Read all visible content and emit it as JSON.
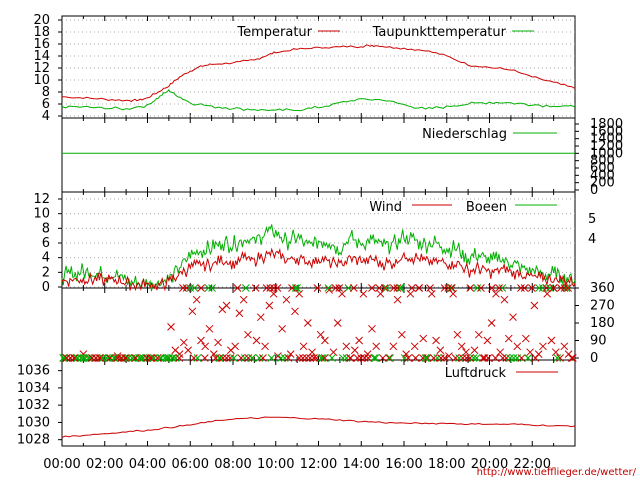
{
  "credit": "http://www.tiefflieger.de/wetter/",
  "colors": {
    "red": "#cc0000",
    "green": "#00b000",
    "grid": "#aaaaaa",
    "frame": "#000000"
  },
  "chart_data": [
    {
      "type": "line",
      "panel": "temperature",
      "x_unit": "hour",
      "xlim": [
        0,
        24
      ],
      "x_tick_labels": [
        "00:00",
        "02:00",
        "04:00",
        "06:00",
        "08:00",
        "10:00",
        "12:00",
        "14:00",
        "16:00",
        "18:00",
        "20:00",
        "22:00"
      ],
      "ylim": [
        4,
        20
      ],
      "y_ticks": [
        4,
        6,
        8,
        10,
        12,
        14,
        16,
        18,
        20
      ],
      "grid": "horizontal dotted",
      "legend_placement": "top",
      "series": [
        {
          "name": "Temperatur",
          "color": "#cc0000",
          "x": [
            0,
            1,
            2,
            3,
            3.5,
            4,
            4.5,
            5,
            5.5,
            6,
            6.5,
            7,
            8,
            9,
            9.5,
            10,
            11,
            12,
            13,
            14,
            14.5,
            15,
            16,
            17,
            18,
            19,
            20,
            21,
            22,
            23,
            24
          ],
          "y": [
            7.2,
            7.0,
            6.8,
            6.6,
            6.6,
            7.0,
            8.0,
            9.0,
            10.5,
            11.5,
            12.3,
            12.6,
            12.9,
            13.3,
            14.0,
            14.6,
            15.1,
            15.4,
            15.5,
            15.6,
            15.8,
            15.6,
            15.3,
            14.9,
            14.0,
            12.5,
            12.1,
            11.7,
            10.5,
            9.6,
            8.6
          ]
        },
        {
          "name": "Taupunkttemperatur",
          "color": "#00b000",
          "x": [
            0,
            1,
            2,
            3,
            4,
            4.5,
            5,
            5.3,
            6,
            7,
            8,
            9,
            10,
            11,
            12,
            13,
            14,
            15,
            16,
            17,
            18,
            19,
            20,
            21,
            22,
            23,
            24
          ],
          "y": [
            5.6,
            5.5,
            5.3,
            5.2,
            5.8,
            7.0,
            8.3,
            7.6,
            6.2,
            5.6,
            5.3,
            5.1,
            4.9,
            5.0,
            5.4,
            6.2,
            6.8,
            6.7,
            5.9,
            5.1,
            5.6,
            6.0,
            6.3,
            6.2,
            5.9,
            5.7,
            5.5
          ]
        }
      ]
    },
    {
      "type": "line",
      "panel": "precipitation",
      "x_unit": "hour",
      "xlim": [
        0,
        24
      ],
      "right_y_ticks": [
        0,
        200,
        400,
        600,
        800,
        1000,
        1200,
        1400,
        1600,
        1800
      ],
      "right_y_tick_labels": [
        "0",
        "200",
        "400",
        "600",
        "800",
        "1000",
        "1200",
        "1400",
        "1600",
        "1800"
      ],
      "legend_placement": "top-right",
      "series": [
        {
          "name": "Niederschlag",
          "color": "#00b000",
          "x": [
            0,
            24
          ],
          "y": [
            1000,
            1000
          ]
        }
      ]
    },
    {
      "type": "line",
      "panel": "wind",
      "x_unit": "hour",
      "xlim": [
        0,
        24
      ],
      "ylim": [
        0,
        12
      ],
      "y_ticks": [
        0,
        2,
        4,
        6,
        8,
        10,
        12
      ],
      "right_y_ticks": [
        4,
        5
      ],
      "right_y_tick_labels": [
        "4",
        "5"
      ],
      "grid": "horizontal dotted",
      "legend_placement": "top",
      "series": [
        {
          "name": "Wind",
          "color": "#cc0000",
          "x": [
            0,
            0.5,
            1,
            1.5,
            2,
            2.5,
            3,
            3.5,
            4,
            4.5,
            5,
            5.5,
            6,
            6.5,
            7,
            7.5,
            8,
            8.5,
            9,
            9.5,
            10,
            10.5,
            11,
            11.5,
            12,
            12.5,
            13,
            13.5,
            14,
            14.5,
            15,
            15.5,
            16,
            16.5,
            17,
            17.5,
            18,
            18.5,
            19,
            19.5,
            20,
            20.5,
            21,
            21.5,
            22,
            22.5,
            23,
            23.5,
            24
          ],
          "y": [
            0.8,
            1.0,
            1.1,
            1.0,
            0.9,
            1.0,
            0.6,
            0.3,
            0.3,
            0.3,
            0.6,
            1.8,
            2.6,
            3.1,
            3.0,
            3.6,
            3.3,
            4.0,
            3.6,
            4.3,
            4.5,
            3.7,
            4.0,
            3.3,
            3.9,
            3.4,
            3.0,
            4.0,
            3.6,
            3.8,
            3.2,
            3.3,
            4.3,
            4.0,
            3.5,
            3.6,
            3.2,
            3.3,
            2.2,
            2.6,
            2.0,
            2.4,
            2.1,
            1.7,
            1.4,
            1.1,
            1.0,
            0.9,
            0.5
          ]
        },
        {
          "name": "Boeen",
          "color": "#00b000",
          "x": [
            0,
            0.5,
            1,
            1.5,
            2,
            2.5,
            3,
            3.5,
            4,
            4.5,
            5,
            5.5,
            6,
            6.5,
            7,
            7.5,
            8,
            8.5,
            9,
            9.5,
            10,
            10.5,
            11,
            11.5,
            12,
            12.5,
            13,
            13.5,
            14,
            14.5,
            15,
            15.5,
            16,
            16.5,
            17,
            17.5,
            18,
            18.5,
            19,
            19.5,
            20,
            20.5,
            21,
            21.5,
            22,
            22.5,
            23,
            23.5,
            24
          ],
          "y": [
            1.5,
            1.8,
            2.1,
            1.9,
            1.6,
            1.6,
            1.0,
            0.5,
            0.5,
            0.6,
            1.0,
            2.8,
            4.2,
            5.0,
            5.2,
            6.2,
            5.7,
            6.5,
            6.3,
            7.4,
            7.6,
            6.2,
            6.8,
            5.6,
            6.3,
            6.2,
            5.1,
            6.7,
            5.9,
            6.3,
            5.6,
            5.8,
            6.9,
            6.4,
            5.8,
            6.0,
            5.3,
            5.2,
            4.0,
            4.4,
            3.4,
            3.9,
            3.3,
            2.7,
            2.3,
            1.8,
            1.7,
            1.5,
            0.9
          ]
        }
      ]
    },
    {
      "type": "scatter",
      "panel": "wind-direction",
      "x_unit": "hour",
      "xlim": [
        0,
        24
      ],
      "ylim": [
        0,
        360
      ],
      "right_y_ticks": [
        0,
        90,
        180,
        270,
        360
      ],
      "right_y_tick_labels": [
        "0",
        "90",
        "180",
        "270",
        "360"
      ],
      "marker": "x",
      "series": [
        {
          "color": "#cc0000",
          "x": [
            0.2,
            0.6,
            1.0,
            1.4,
            1.8,
            2.2,
            2.6,
            3.0,
            3.4,
            3.8,
            4.2,
            4.6,
            5.0,
            5.1,
            5.3,
            5.5,
            5.7,
            5.9,
            6.1,
            6.3,
            6.5,
            6.7,
            6.9,
            7.1,
            7.3,
            7.5,
            7.7,
            7.9,
            8.1,
            8.3,
            8.5,
            8.7,
            8.9,
            9.1,
            9.3,
            9.5,
            9.7,
            9.9,
            10.1,
            10.3,
            10.5,
            10.7,
            10.9,
            11.1,
            11.3,
            11.5,
            11.7,
            11.9,
            12.1,
            12.3,
            12.5,
            12.7,
            12.9,
            13.1,
            13.3,
            13.5,
            13.7,
            13.9,
            14.1,
            14.3,
            14.5,
            14.7,
            14.9,
            15.1,
            15.3,
            15.5,
            15.7,
            15.9,
            16.1,
            16.3,
            16.5,
            16.7,
            16.9,
            17.1,
            17.3,
            17.5,
            17.7,
            17.9,
            18.1,
            18.3,
            18.5,
            18.7,
            18.9,
            19.1,
            19.3,
            19.5,
            19.7,
            19.9,
            20.1,
            20.3,
            20.5,
            20.7,
            20.9,
            21.1,
            21.3,
            21.5,
            21.7,
            21.9,
            22.1,
            22.3,
            22.5,
            22.7,
            22.9,
            23.1,
            23.3,
            23.5,
            23.7,
            23.9
          ],
          "y": [
            0,
            0,
            20,
            0,
            0,
            0,
            10,
            0,
            0,
            0,
            0,
            0,
            0,
            160,
            40,
            20,
            80,
            40,
            240,
            300,
            90,
            60,
            150,
            20,
            80,
            250,
            270,
            40,
            60,
            230,
            300,
            120,
            0,
            90,
            210,
            60,
            270,
            330,
            10,
            150,
            300,
            20,
            240,
            330,
            60,
            180,
            30,
            0,
            120,
            90,
            350,
            30,
            180,
            330,
            60,
            0,
            40,
            90,
            330,
            20,
            150,
            60,
            330,
            360,
            0,
            60,
            300,
            120,
            20,
            330,
            60,
            360,
            100,
            0,
            330,
            90,
            40,
            360,
            10,
            330,
            120,
            60,
            30,
            360,
            40,
            120,
            0,
            90,
            180,
            330,
            30,
            300,
            100,
            210,
            60,
            0,
            100,
            30,
            270,
            20,
            60,
            330,
            90,
            30,
            0,
            60,
            20,
            0
          ]
        },
        {
          "color": "#00b000",
          "x": [
            0.1,
            0.4,
            0.7,
            1.0,
            1.3,
            1.6,
            1.9,
            2.2,
            2.5,
            2.8,
            3.1,
            3.4,
            3.7,
            4.0,
            4.3,
            4.6,
            4.9,
            5.2,
            6.2,
            7.4,
            8.6,
            9.8,
            11.0,
            12.2,
            13.4,
            14.6,
            15.8,
            17.0,
            18.2,
            19.4,
            20.6,
            21.8,
            23.0,
            23.6
          ],
          "y": [
            0,
            0,
            0,
            0,
            0,
            0,
            0,
            0,
            0,
            0,
            0,
            0,
            0,
            0,
            0,
            0,
            0,
            0,
            360,
            0,
            360,
            0,
            360,
            0,
            360,
            0,
            360,
            0,
            360,
            0,
            360,
            0,
            360,
            360
          ]
        }
      ]
    },
    {
      "type": "line",
      "panel": "pressure",
      "x_unit": "hour",
      "xlim": [
        0,
        24
      ],
      "ylim": [
        1027.5,
        1037
      ],
      "y_ticks": [
        1028,
        1030,
        1032,
        1034,
        1036
      ],
      "legend_placement": "top-right",
      "series": [
        {
          "name": "Luftdruck",
          "color": "#cc0000",
          "x": [
            0,
            1,
            2,
            3,
            4,
            5,
            6,
            7,
            8,
            9,
            10,
            11,
            12,
            13,
            14,
            15,
            16,
            17,
            18,
            19,
            20,
            21,
            22,
            23,
            24
          ],
          "y": [
            1028.3,
            1028.5,
            1028.7,
            1028.9,
            1029.1,
            1029.4,
            1029.7,
            1030.1,
            1030.4,
            1030.5,
            1030.6,
            1030.5,
            1030.4,
            1030.3,
            1030.1,
            1030.0,
            1029.9,
            1029.9,
            1029.9,
            1029.8,
            1029.8,
            1029.8,
            1029.7,
            1029.6,
            1029.6
          ]
        }
      ]
    }
  ]
}
